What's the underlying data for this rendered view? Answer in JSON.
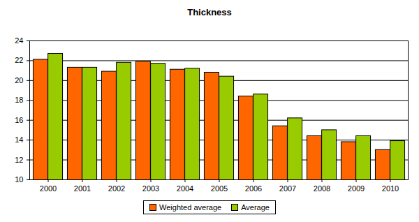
{
  "chart_data": {
    "type": "bar",
    "title": "Thickness",
    "categories": [
      "2000",
      "2001",
      "2002",
      "2003",
      "2004",
      "2005",
      "2006",
      "2007",
      "2008",
      "2009",
      "2010"
    ],
    "series": [
      {
        "name": "Weighted average",
        "color": "#FF6600",
        "values": [
          22.1,
          21.3,
          20.9,
          21.9,
          21.1,
          20.8,
          18.4,
          15.4,
          14.4,
          13.8,
          13.0
        ]
      },
      {
        "name": "Average",
        "color": "#99CC00",
        "values": [
          22.7,
          21.3,
          21.8,
          21.7,
          21.2,
          20.4,
          18.6,
          16.2,
          15.0,
          14.4,
          13.9
        ]
      }
    ],
    "ylim": [
      10,
      24
    ],
    "yticks": [
      10,
      12,
      14,
      16,
      18,
      20,
      22,
      24
    ],
    "grid": true,
    "legend": "bottom"
  }
}
